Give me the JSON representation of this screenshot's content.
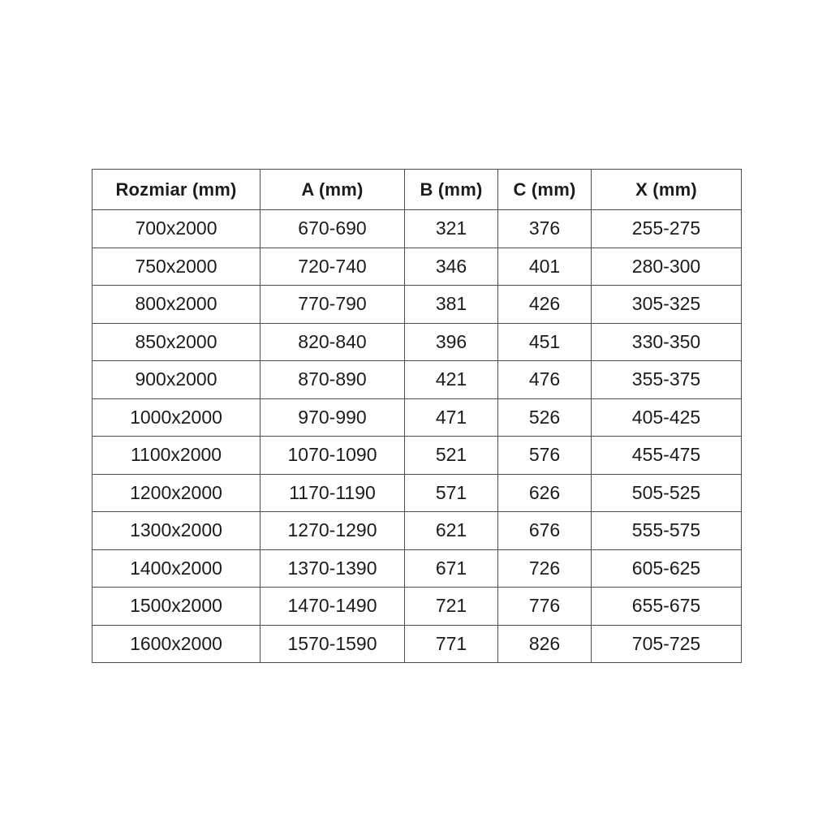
{
  "chart_data": {
    "type": "table",
    "title": "",
    "columns": [
      "Rozmiar (mm)",
      "A (mm)",
      "B (mm)",
      "C (mm)",
      "X (mm)"
    ],
    "rows": [
      [
        "700x2000",
        "670-690",
        "321",
        "376",
        "255-275"
      ],
      [
        "750x2000",
        "720-740",
        "346",
        "401",
        "280-300"
      ],
      [
        "800x2000",
        "770-790",
        "381",
        "426",
        "305-325"
      ],
      [
        "850x2000",
        "820-840",
        "396",
        "451",
        "330-350"
      ],
      [
        "900x2000",
        "870-890",
        "421",
        "476",
        "355-375"
      ],
      [
        "1000x2000",
        "970-990",
        "471",
        "526",
        "405-425"
      ],
      [
        "1100x2000",
        "1070-1090",
        "521",
        "576",
        "455-475"
      ],
      [
        "1200x2000",
        "1170-1190",
        "571",
        "626",
        "505-525"
      ],
      [
        "1300x2000",
        "1270-1290",
        "621",
        "676",
        "555-575"
      ],
      [
        "1400x2000",
        "1370-1390",
        "671",
        "726",
        "605-625"
      ],
      [
        "1500x2000",
        "1470-1490",
        "721",
        "776",
        "655-675"
      ],
      [
        "1600x2000",
        "1570-1590",
        "771",
        "826",
        "705-725"
      ]
    ]
  },
  "colors": {
    "background": "#ffffff",
    "border": "#4d4d4d",
    "text": "#1c1c1c"
  }
}
